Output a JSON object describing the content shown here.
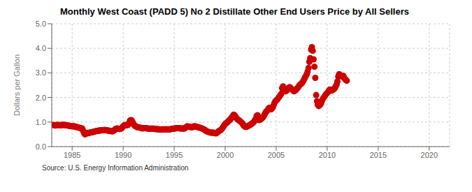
{
  "chart_data": {
    "type": "scatter",
    "title": "Monthly West Coast (PADD 5) No 2 Distillate Other End Users Price by All Sellers",
    "y_label": "Dollars per Gallon",
    "annotations": [
      "Source: U.S. Energy Information Administration"
    ],
    "color": "#CC0000",
    "grid": true,
    "xlim": [
      1983,
      2022
    ],
    "ylim": [
      0.0,
      5.0
    ],
    "xticks": [
      1985,
      1990,
      1995,
      2000,
      2005,
      2010,
      2015,
      2020
    ],
    "yticks": [
      {
        "value": 0.0,
        "label": "0.0"
      },
      {
        "value": 1.0,
        "label": "1.0"
      },
      {
        "value": 2.0,
        "label": "2.0"
      },
      {
        "value": 3.0,
        "label": "3.0"
      },
      {
        "value": 4.0,
        "label": "4.0"
      },
      {
        "value": 5.0,
        "label": "5.0"
      }
    ],
    "x": [
      1983.17,
      1983.25,
      1983.33,
      1983.42,
      1983.5,
      1983.58,
      1983.67,
      1983.75,
      1983.83,
      1983.92,
      1984.0,
      1984.08,
      1984.17,
      1984.25,
      1984.33,
      1984.42,
      1984.5,
      1984.58,
      1984.67,
      1984.75,
      1984.83,
      1984.92,
      1985.0,
      1985.08,
      1985.17,
      1985.25,
      1985.33,
      1985.42,
      1985.5,
      1985.58,
      1985.67,
      1985.75,
      1985.83,
      1985.92,
      1986.0,
      1986.08,
      1986.17,
      1986.25,
      1986.33,
      1986.42,
      1986.5,
      1986.58,
      1986.67,
      1986.75,
      1986.83,
      1986.92,
      1987.0,
      1987.08,
      1987.17,
      1987.25,
      1987.33,
      1987.42,
      1987.5,
      1987.58,
      1987.67,
      1987.75,
      1987.83,
      1987.92,
      1988.0,
      1988.08,
      1988.17,
      1988.25,
      1988.33,
      1988.42,
      1988.5,
      1988.58,
      1988.67,
      1988.75,
      1988.83,
      1988.92,
      1989.0,
      1989.08,
      1989.17,
      1989.25,
      1989.33,
      1989.42,
      1989.5,
      1989.58,
      1989.67,
      1989.75,
      1989.83,
      1989.92,
      1990.0,
      1990.08,
      1990.17,
      1990.25,
      1990.33,
      1990.42,
      1990.5,
      1990.58,
      1990.67,
      1990.75,
      1990.83,
      1990.92,
      1991.0,
      1991.08,
      1991.17,
      1991.25,
      1991.33,
      1991.42,
      1991.5,
      1991.58,
      1991.67,
      1991.75,
      1991.83,
      1991.92,
      1992.0,
      1992.08,
      1992.17,
      1992.25,
      1992.33,
      1992.42,
      1992.5,
      1992.58,
      1992.67,
      1992.75,
      1992.83,
      1992.92,
      1993.0,
      1993.08,
      1993.17,
      1993.25,
      1993.33,
      1993.42,
      1993.5,
      1993.58,
      1993.67,
      1993.75,
      1993.83,
      1993.92,
      1994.0,
      1994.08,
      1994.17,
      1994.25,
      1994.33,
      1994.42,
      1994.5,
      1994.58,
      1994.67,
      1994.75,
      1994.83,
      1994.92,
      1995.0,
      1995.08,
      1995.17,
      1995.25,
      1995.33,
      1995.42,
      1995.5,
      1995.58,
      1995.67,
      1995.75,
      1995.83,
      1995.92,
      1996.0,
      1996.08,
      1996.17,
      1996.25,
      1996.33,
      1996.42,
      1996.5,
      1996.58,
      1996.67,
      1996.75,
      1996.83,
      1996.92,
      1997.0,
      1997.08,
      1997.17,
      1997.25,
      1997.33,
      1997.42,
      1997.5,
      1997.58,
      1997.67,
      1997.75,
      1997.83,
      1997.92,
      1998.0,
      1998.08,
      1998.17,
      1998.25,
      1998.33,
      1998.42,
      1998.5,
      1998.58,
      1998.67,
      1998.75,
      1998.83,
      1998.92,
      1999.0,
      1999.08,
      1999.17,
      1999.25,
      1999.33,
      1999.42,
      1999.5,
      1999.58,
      1999.67,
      1999.75,
      1999.83,
      1999.92,
      2000.0,
      2000.08,
      2000.17,
      2000.25,
      2000.33,
      2000.42,
      2000.5,
      2000.58,
      2000.67,
      2000.75,
      2000.83,
      2000.92,
      2001.0,
      2001.08,
      2001.17,
      2001.25,
      2001.33,
      2001.42,
      2001.5,
      2001.58,
      2001.67,
      2001.75,
      2001.83,
      2001.92,
      2002.0,
      2002.08,
      2002.17,
      2002.25,
      2002.33,
      2002.42,
      2002.5,
      2002.58,
      2002.67,
      2002.75,
      2002.83,
      2002.92,
      2003.0,
      2003.08,
      2003.17,
      2003.25,
      2003.33,
      2003.42,
      2003.5,
      2003.58,
      2003.67,
      2003.75,
      2003.83,
      2003.92,
      2004.0,
      2004.08,
      2004.17,
      2004.25,
      2004.33,
      2004.42,
      2004.5,
      2004.58,
      2004.67,
      2004.75,
      2004.83,
      2004.92,
      2005.0,
      2005.08,
      2005.17,
      2005.25,
      2005.33,
      2005.42,
      2005.5,
      2005.58,
      2005.67,
      2005.75,
      2005.83,
      2005.92,
      2006.0,
      2006.08,
      2006.17,
      2006.25,
      2006.33,
      2006.42,
      2006.5,
      2006.58,
      2006.67,
      2006.75,
      2006.83,
      2006.92,
      2007.0,
      2007.08,
      2007.17,
      2007.25,
      2007.33,
      2007.42,
      2007.5,
      2007.58,
      2007.67,
      2007.75,
      2007.83,
      2007.92,
      2008.0,
      2008.08,
      2008.17,
      2008.25,
      2008.33,
      2008.42,
      2008.5,
      2008.58,
      2008.67,
      2008.75,
      2008.83,
      2008.92,
      2009.0,
      2009.08,
      2009.17,
      2009.25,
      2009.33,
      2009.42,
      2009.5,
      2009.58,
      2009.67,
      2009.75,
      2009.83,
      2009.92,
      2010.0,
      2010.08,
      2010.17,
      2010.25,
      2010.33,
      2010.42,
      2010.5,
      2010.58,
      2010.67,
      2010.75,
      2010.83,
      2010.92,
      2011.0,
      2011.08,
      2011.17,
      2011.25,
      2011.33,
      2011.42,
      2011.5,
      2011.58,
      2011.67,
      2011.75,
      2011.83,
      2011.92
    ],
    "values": [
      0.88,
      0.87,
      0.86,
      0.87,
      0.88,
      0.88,
      0.88,
      0.87,
      0.87,
      0.87,
      0.88,
      0.88,
      0.89,
      0.88,
      0.87,
      0.87,
      0.87,
      0.86,
      0.85,
      0.84,
      0.84,
      0.83,
      0.83,
      0.83,
      0.82,
      0.82,
      0.81,
      0.8,
      0.79,
      0.78,
      0.77,
      0.76,
      0.75,
      0.74,
      0.73,
      0.64,
      0.55,
      0.5,
      0.52,
      0.54,
      0.56,
      0.55,
      0.56,
      0.57,
      0.58,
      0.58,
      0.59,
      0.6,
      0.61,
      0.62,
      0.63,
      0.63,
      0.64,
      0.65,
      0.65,
      0.66,
      0.66,
      0.67,
      0.67,
      0.67,
      0.68,
      0.67,
      0.67,
      0.66,
      0.65,
      0.65,
      0.64,
      0.63,
      0.63,
      0.62,
      0.63,
      0.65,
      0.68,
      0.72,
      0.73,
      0.74,
      0.73,
      0.72,
      0.72,
      0.73,
      0.74,
      0.78,
      0.83,
      0.86,
      0.88,
      0.87,
      0.87,
      0.88,
      0.89,
      0.96,
      1.06,
      1.08,
      1.07,
      1.0,
      0.93,
      0.88,
      0.84,
      0.82,
      0.8,
      0.79,
      0.79,
      0.78,
      0.77,
      0.76,
      0.75,
      0.74,
      0.75,
      0.75,
      0.75,
      0.75,
      0.74,
      0.74,
      0.73,
      0.73,
      0.73,
      0.73,
      0.73,
      0.73,
      0.73,
      0.72,
      0.72,
      0.71,
      0.71,
      0.71,
      0.7,
      0.7,
      0.69,
      0.7,
      0.7,
      0.7,
      0.7,
      0.7,
      0.7,
      0.7,
      0.7,
      0.7,
      0.7,
      0.7,
      0.71,
      0.72,
      0.73,
      0.73,
      0.73,
      0.74,
      0.75,
      0.75,
      0.75,
      0.75,
      0.75,
      0.74,
      0.74,
      0.74,
      0.74,
      0.73,
      0.74,
      0.76,
      0.79,
      0.82,
      0.82,
      0.81,
      0.8,
      0.8,
      0.79,
      0.79,
      0.8,
      0.82,
      0.82,
      0.82,
      0.81,
      0.8,
      0.79,
      0.78,
      0.77,
      0.76,
      0.75,
      0.73,
      0.72,
      0.7,
      0.68,
      0.65,
      0.63,
      0.61,
      0.6,
      0.59,
      0.58,
      0.57,
      0.57,
      0.57,
      0.57,
      0.56,
      0.55,
      0.54,
      0.55,
      0.58,
      0.62,
      0.64,
      0.66,
      0.68,
      0.72,
      0.77,
      0.82,
      0.88,
      0.92,
      0.95,
      0.97,
      1.0,
      1.05,
      1.07,
      1.1,
      1.15,
      1.2,
      1.25,
      1.3,
      1.28,
      1.23,
      1.17,
      1.12,
      1.1,
      1.08,
      1.05,
      1.02,
      0.99,
      0.95,
      0.9,
      0.85,
      0.82,
      0.8,
      0.8,
      0.82,
      0.84,
      0.86,
      0.88,
      0.9,
      0.92,
      0.95,
      0.98,
      1.02,
      1.08,
      1.13,
      1.25,
      1.28,
      1.15,
      1.08,
      1.1,
      1.12,
      1.15,
      1.18,
      1.22,
      1.28,
      1.35,
      1.42,
      1.45,
      1.48,
      1.55,
      1.58,
      1.55,
      1.52,
      1.55,
      1.6,
      1.68,
      1.78,
      1.85,
      1.88,
      1.9,
      1.95,
      2.0,
      2.05,
      2.1,
      2.15,
      2.38,
      2.45,
      2.35,
      2.3,
      2.25,
      2.28,
      2.3,
      2.35,
      2.4,
      2.42,
      2.38,
      2.35,
      2.32,
      2.28,
      2.25,
      2.28,
      2.3,
      2.35,
      2.38,
      2.42,
      2.48,
      2.52,
      2.55,
      2.58,
      2.62,
      2.68,
      2.75,
      2.82,
      2.88,
      2.95,
      3.05,
      3.2,
      3.45,
      3.6,
      3.95,
      4.05,
      3.9,
      3.55,
      3.25,
      2.8,
      2.1,
      1.85,
      1.7,
      1.65,
      1.68,
      1.72,
      1.78,
      1.88,
      1.95,
      2.0,
      2.05,
      2.1,
      2.15,
      2.18,
      2.22,
      2.28,
      2.32,
      2.3,
      2.28,
      2.3,
      2.32,
      2.35,
      2.38,
      2.45,
      2.52,
      2.65,
      2.85,
      2.95,
      2.92,
      2.88,
      2.85,
      2.85,
      2.88,
      2.8,
      2.75,
      2.72,
      2.68
    ]
  }
}
